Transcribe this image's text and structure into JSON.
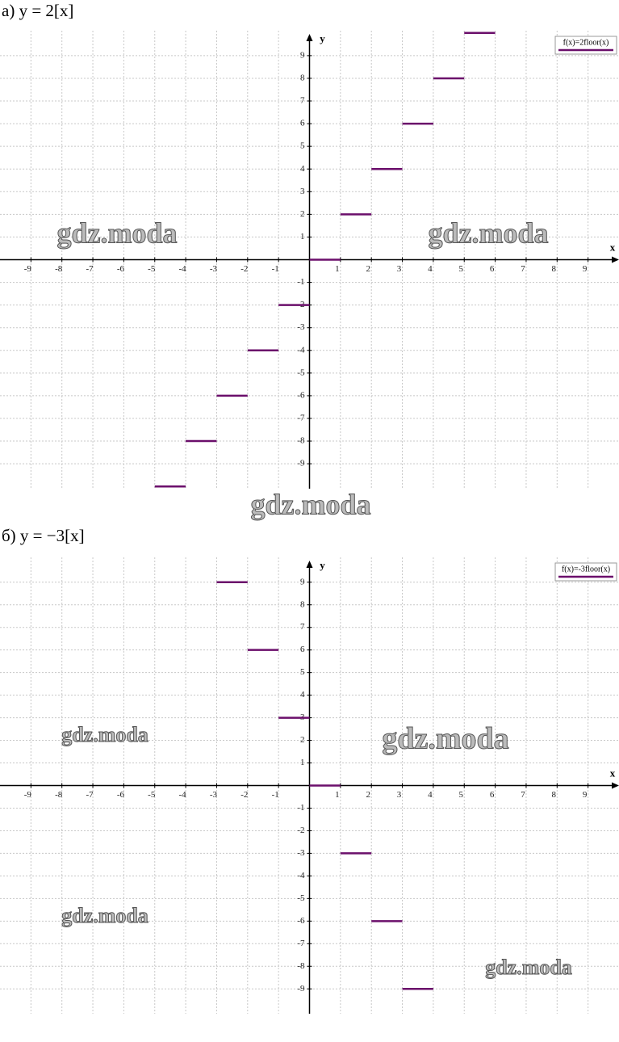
{
  "chart_data": [
    {
      "type": "step",
      "title": "а) y = 2[x]",
      "x_label": "x",
      "y_label": "y",
      "legend": "f(x)=2floor(x)",
      "color": "#6b0f6b",
      "x": [
        -5,
        -4,
        -3,
        -2,
        -1,
        0,
        1,
        2,
        3,
        4,
        5
      ],
      "values": [
        -10,
        -8,
        -6,
        -4,
        -2,
        0,
        2,
        4,
        6,
        8,
        10
      ],
      "xlim": [
        -10,
        10
      ],
      "ylim": [
        -10.1,
        10.1
      ],
      "xticks": [
        -9,
        -8,
        -7,
        -6,
        -5,
        -4,
        -3,
        -2,
        -1,
        1,
        2,
        3,
        4,
        5,
        6,
        7,
        8,
        9
      ],
      "yticks": [
        -9,
        -8,
        -7,
        -6,
        -5,
        -4,
        -3,
        -2,
        -1,
        1,
        2,
        3,
        4,
        5,
        6,
        7,
        8,
        9
      ],
      "grid": true,
      "annotations": [
        "gdz.moda",
        "gdz.moda",
        "gdz.moda"
      ]
    },
    {
      "type": "step",
      "title": "б) y = −3[x]",
      "x_label": "x",
      "y_label": "y",
      "legend": "f(x)=-3floor(x)",
      "color": "#6b0f6b",
      "x": [
        -3,
        -2,
        -1,
        0,
        1,
        2,
        3
      ],
      "values": [
        9,
        6,
        3,
        0,
        -3,
        -6,
        -9
      ],
      "xlim": [
        -10,
        10
      ],
      "ylim": [
        -10.1,
        10.1
      ],
      "xticks": [
        -9,
        -8,
        -7,
        -6,
        -5,
        -4,
        -3,
        -2,
        -1,
        1,
        2,
        3,
        4,
        5,
        6,
        7,
        8,
        9
      ],
      "yticks": [
        -9,
        -8,
        -7,
        -6,
        -5,
        -4,
        -3,
        -2,
        -1,
        1,
        2,
        3,
        4,
        5,
        6,
        7,
        8,
        9
      ],
      "grid": true,
      "annotations": [
        "gdz.moda",
        "gdz.moda",
        "gdz.moda",
        "gdz.moda"
      ]
    }
  ]
}
